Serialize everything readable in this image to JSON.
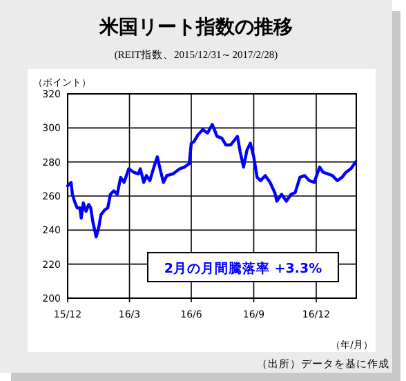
{
  "chart_data": {
    "type": "line",
    "title": "米国リート指数の推移",
    "subtitle": "(REIT指数、2015/12/31～2017/2/28)",
    "ylabel": "（ポイント）",
    "xlabel": "（年/月）",
    "annotations": [
      "2月の月間騰落率 +3.3%",
      "（出所）データを基に作成"
    ],
    "x": [
      "2015-12-31",
      "2016-01-05",
      "2016-01-07",
      "2016-01-10",
      "2016-01-14",
      "2016-01-18",
      "2016-01-20",
      "2016-01-23",
      "2016-01-27",
      "2016-01-31",
      "2016-02-03",
      "2016-02-06",
      "2016-02-11",
      "2016-02-15",
      "2016-02-18",
      "2016-02-24",
      "2016-02-28",
      "2016-03-03",
      "2016-03-08",
      "2016-03-13",
      "2016-03-18",
      "2016-03-23",
      "2016-03-30",
      "2016-04-06",
      "2016-04-13",
      "2016-04-16",
      "2016-04-21",
      "2016-04-25",
      "2016-04-30",
      "2016-05-06",
      "2016-05-11",
      "2016-05-15",
      "2016-05-20",
      "2016-05-25",
      "2016-06-03",
      "2016-06-13",
      "2016-06-20",
      "2016-06-27",
      "2016-06-30",
      "2016-07-04",
      "2016-07-10",
      "2016-07-17",
      "2016-07-24",
      "2016-07-31",
      "2016-08-07",
      "2016-08-14",
      "2016-08-20",
      "2016-08-27",
      "2016-09-06",
      "2016-09-10",
      "2016-09-15",
      "2016-09-20",
      "2016-09-25",
      "2016-09-30",
      "2016-10-05",
      "2016-10-10",
      "2016-10-17",
      "2016-10-24",
      "2016-10-31",
      "2016-11-03",
      "2016-11-10",
      "2016-11-17",
      "2016-11-24",
      "2016-11-30",
      "2016-12-07",
      "2016-12-14",
      "2016-12-21",
      "2016-12-28",
      "2017-01-05",
      "2017-01-10",
      "2017-01-17",
      "2017-01-24",
      "2017-01-31",
      "2017-02-07",
      "2017-02-13",
      "2017-02-20",
      "2017-02-27"
    ],
    "series": [
      {
        "color": "#0000ff",
        "values": [
          266,
          268,
          261,
          257,
          253,
          253,
          247,
          256,
          251,
          255,
          253,
          245,
          236,
          242,
          249,
          252,
          253,
          261,
          263,
          261,
          271,
          268,
          276,
          274,
          273,
          276,
          268,
          272,
          269,
          277,
          283,
          276,
          268,
          272,
          273,
          276,
          277,
          279,
          291,
          292,
          296,
          299,
          297,
          302,
          295,
          294,
          290,
          290,
          295,
          286,
          277,
          287,
          291,
          283,
          271,
          269,
          272,
          268,
          262,
          257,
          261,
          257,
          261,
          262,
          271,
          272,
          269,
          268,
          277,
          274,
          273,
          272,
          269,
          271,
          274,
          276,
          280
        ]
      }
    ],
    "xlim": [
      "2015-12-31",
      "2017-02-28"
    ],
    "xticks": [
      {
        "value": "2015-12-31",
        "label": "15/12"
      },
      {
        "value": "2016-03-31",
        "label": "16/3"
      },
      {
        "value": "2016-06-30",
        "label": "16/6"
      },
      {
        "value": "2016-09-30",
        "label": "16/9"
      },
      {
        "value": "2016-12-31",
        "label": "16/12"
      }
    ],
    "ylim": [
      200,
      320
    ],
    "yticks": [
      200,
      220,
      240,
      260,
      280,
      300,
      320
    ],
    "grid": true,
    "marker": "none",
    "line_style": "solid"
  }
}
